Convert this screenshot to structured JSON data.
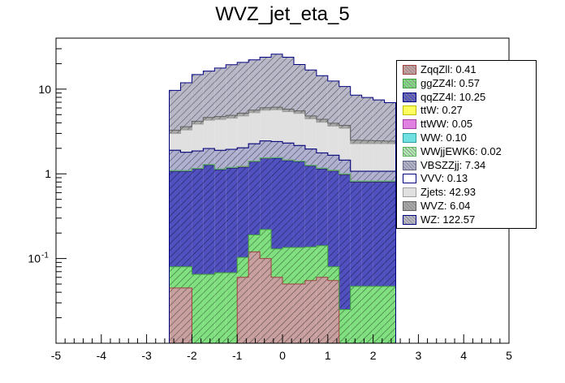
{
  "chart_data": {
    "type": "bar",
    "subtype": "stacked-histogram",
    "title": "WVZ_jet_eta_5",
    "xlabel": "",
    "ylabel": "",
    "xlim": [
      -5,
      5
    ],
    "ylim": [
      0.01,
      40
    ],
    "yscale": "log",
    "bin_edges": [
      -2.5,
      -2.25,
      -2.0,
      -1.75,
      -1.5,
      -1.25,
      -1.0,
      -0.75,
      -0.5,
      -0.25,
      0.0,
      0.25,
      0.5,
      0.75,
      1.0,
      1.25,
      1.5,
      1.75,
      2.0,
      2.25,
      2.5
    ],
    "x_ticks": [
      "-5",
      "-4",
      "-3",
      "-2",
      "-1",
      "0",
      "1",
      "2",
      "3",
      "4",
      "5"
    ],
    "y_ticks": [
      {
        "value": 0.1,
        "label": "10",
        "exp": "-1"
      },
      {
        "value": 1,
        "label": "1",
        "exp": ""
      },
      {
        "value": 10,
        "label": "10",
        "exp": ""
      }
    ],
    "legend_position": "top-right",
    "series": [
      {
        "name": "ZqqZll",
        "label": "ZqqZll: 0.41",
        "color": "#c8a0a0",
        "edge": "#a04040",
        "hatch": true,
        "values": [
          0.045,
          0.045,
          0.0,
          0.0,
          0.0,
          0.0,
          0.06,
          0.12,
          0.1,
          0.06,
          0.05,
          0.05,
          0.055,
          0.06,
          0.055,
          0.0,
          0.0,
          0.0,
          0.0,
          0.0
        ]
      },
      {
        "name": "ggZZ4l",
        "label": "ggZZ4l: 0.57",
        "color": "#80e080",
        "edge": "#40a040",
        "hatch": true,
        "values": [
          0.035,
          0.035,
          0.065,
          0.065,
          0.068,
          0.068,
          0.043,
          0.07,
          0.12,
          0.07,
          0.085,
          0.085,
          0.082,
          0.082,
          0.025,
          0.025,
          0.047,
          0.047,
          0.047,
          0.047
        ]
      },
      {
        "name": "qqZZ4l",
        "label": "qqZZ4l: 10.25",
        "color": "#5050c0",
        "edge": "#000080",
        "hatch": true,
        "values": [
          0.99,
          0.99,
          1.07,
          1.2,
          1.05,
          1.1,
          1.1,
          1.2,
          1.3,
          1.4,
          1.3,
          1.25,
          1.1,
          1.0,
          1.0,
          0.95,
          0.75,
          0.75,
          0.75,
          0.75
        ]
      },
      {
        "name": "ttW",
        "label": "ttW: 0.27",
        "color": "#ffff60",
        "edge": "#c0c000",
        "hatch": false,
        "values": [
          0.013,
          0.013,
          0.013,
          0.013,
          0.013,
          0.014,
          0.014,
          0.014,
          0.014,
          0.014,
          0.014,
          0.014,
          0.014,
          0.014,
          0.013,
          0.013,
          0.013,
          0.013,
          0.013,
          0.013
        ]
      },
      {
        "name": "ttWW",
        "label": "ttWW: 0.05",
        "color": "#e080e0",
        "edge": "#a040a0",
        "hatch": false,
        "values": [
          0.0025,
          0.0025,
          0.0025,
          0.0025,
          0.0025,
          0.0025,
          0.0025,
          0.0025,
          0.0025,
          0.0025,
          0.0025,
          0.0025,
          0.0025,
          0.0025,
          0.0025,
          0.0025,
          0.0025,
          0.0025,
          0.0025,
          0.0025
        ]
      },
      {
        "name": "WW",
        "label": "WW: 0.10",
        "color": "#70e0e0",
        "edge": "#30a0a0",
        "hatch": false,
        "values": [
          0.005,
          0.005,
          0.005,
          0.005,
          0.005,
          0.005,
          0.005,
          0.005,
          0.005,
          0.005,
          0.005,
          0.005,
          0.005,
          0.005,
          0.005,
          0.005,
          0.005,
          0.005,
          0.005,
          0.005
        ]
      },
      {
        "name": "WWjjEWK6",
        "label": "WWjjEWK6: 0.02",
        "color": "#b0f0b0",
        "edge": "#60b060",
        "hatch": true,
        "values": [
          0.001,
          0.001,
          0.001,
          0.001,
          0.001,
          0.001,
          0.001,
          0.001,
          0.001,
          0.001,
          0.001,
          0.001,
          0.001,
          0.001,
          0.001,
          0.001,
          0.001,
          0.001,
          0.001,
          0.001
        ]
      },
      {
        "name": "VBSZZjj",
        "label": "VBSZZjj: 7.34",
        "color": "#b0b0d0",
        "edge": "#606080",
        "hatch": true,
        "values": [
          0.8,
          0.7,
          0.7,
          0.7,
          0.75,
          0.75,
          0.8,
          0.85,
          0.9,
          0.85,
          0.85,
          0.75,
          0.7,
          0.6,
          0.55,
          0.45,
          0.25,
          0.25,
          0.25,
          0.25
        ]
      },
      {
        "name": "VVV",
        "label": "VVV: 0.13",
        "color": "#ffffff",
        "edge": "#000080",
        "hatch": false,
        "values": [
          0.0065,
          0.0065,
          0.0065,
          0.0065,
          0.0065,
          0.0065,
          0.0065,
          0.0065,
          0.0065,
          0.0065,
          0.0065,
          0.0065,
          0.0065,
          0.0065,
          0.0065,
          0.0065,
          0.0065,
          0.0065,
          0.0065,
          0.0065
        ]
      },
      {
        "name": "Zjets",
        "label": "Zjets: 42.93",
        "color": "#e0e0e0",
        "edge": "#a0a0a0",
        "hatch": false,
        "values": [
          1.1,
          1.5,
          2.0,
          2.3,
          2.5,
          2.6,
          2.8,
          3.0,
          3.2,
          3.3,
          3.1,
          3.0,
          2.5,
          2.3,
          2.0,
          2.0,
          1.2,
          1.2,
          1.2,
          1.2
        ]
      },
      {
        "name": "WVZ",
        "label": "WVZ: 6.04",
        "color": "#a8a8a8",
        "edge": "#606060",
        "hatch": true,
        "values": [
          0.28,
          0.3,
          0.32,
          0.34,
          0.35,
          0.36,
          0.37,
          0.38,
          0.39,
          0.4,
          0.39,
          0.38,
          0.36,
          0.34,
          0.3,
          0.28,
          0.22,
          0.2,
          0.18,
          0.16
        ]
      },
      {
        "name": "WZ",
        "label": "WZ: 122.57",
        "color": "#b8b8c8",
        "edge": "#000080",
        "hatch": true,
        "values": [
          6.4,
          8.3,
          10.7,
          11.7,
          13.0,
          14.5,
          15.5,
          16.5,
          17.8,
          19.8,
          18.0,
          14.0,
          12.0,
          10.0,
          8.5,
          7.0,
          6.0,
          5.5,
          5.0,
          4.5
        ]
      }
    ]
  }
}
